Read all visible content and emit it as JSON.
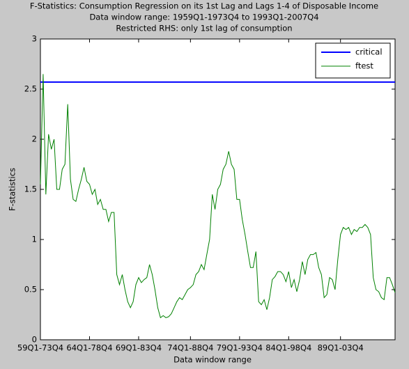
{
  "chart_data": {
    "type": "line",
    "title": "F-Statistics: Consumption Regression on its 1st Lag and Lags 1-4 of Disposable Income",
    "subtitle": "Data window range: 1959Q1-1973Q4 to 1993Q1-2007Q4",
    "annotation": "Restricted RHS: only 1st lag of consumption",
    "x_label": "Data window range",
    "y_label": "F-statistics",
    "xlim": [
      0,
      130
    ],
    "ylim": [
      0,
      3
    ],
    "xticks": [
      {
        "value": 0,
        "label": "59Q1-73Q4"
      },
      {
        "value": 18,
        "label": "64Q1-78Q4"
      },
      {
        "value": 36,
        "label": "69Q1-83Q4"
      },
      {
        "value": 55,
        "label": "74Q1-88Q4"
      },
      {
        "value": 73,
        "label": "79Q1-93Q4"
      },
      {
        "value": 91,
        "label": "84Q1-98Q4"
      },
      {
        "value": 110,
        "label": "89Q1-03Q4"
      }
    ],
    "yticks": [
      0,
      0.5,
      1,
      1.5,
      2,
      2.5,
      3
    ],
    "legend": "top-right",
    "series": [
      {
        "name": "critical",
        "color": "#0000ff",
        "x": [
          0,
          130
        ],
        "values": [
          2.57,
          2.57
        ]
      },
      {
        "name": "ftest",
        "color": "#008000",
        "values": [
          1.55,
          2.65,
          1.45,
          2.05,
          1.9,
          2.0,
          1.5,
          1.5,
          1.7,
          1.75,
          2.35,
          1.6,
          1.4,
          1.38,
          1.5,
          1.6,
          1.72,
          1.58,
          1.55,
          1.45,
          1.5,
          1.35,
          1.4,
          1.3,
          1.3,
          1.18,
          1.27,
          1.27,
          0.65,
          0.55,
          0.65,
          0.5,
          0.38,
          0.32,
          0.38,
          0.55,
          0.62,
          0.57,
          0.6,
          0.62,
          0.75,
          0.65,
          0.5,
          0.32,
          0.22,
          0.24,
          0.22,
          0.23,
          0.26,
          0.32,
          0.38,
          0.42,
          0.4,
          0.45,
          0.5,
          0.52,
          0.55,
          0.65,
          0.68,
          0.75,
          0.7,
          0.85,
          1.0,
          1.45,
          1.3,
          1.5,
          1.55,
          1.7,
          1.75,
          1.88,
          1.75,
          1.7,
          1.4,
          1.4,
          1.2,
          1.05,
          0.88,
          0.72,
          0.72,
          0.88,
          0.38,
          0.35,
          0.4,
          0.3,
          0.42,
          0.6,
          0.63,
          0.68,
          0.68,
          0.65,
          0.58,
          0.68,
          0.52,
          0.6,
          0.48,
          0.6,
          0.78,
          0.65,
          0.8,
          0.85,
          0.85,
          0.87,
          0.72,
          0.65,
          0.42,
          0.45,
          0.62,
          0.6,
          0.5,
          0.8,
          1.05,
          1.12,
          1.1,
          1.12,
          1.05,
          1.1,
          1.08,
          1.12,
          1.12,
          1.15,
          1.12,
          1.05,
          0.62,
          0.5,
          0.48,
          0.42,
          0.4,
          0.62,
          0.62,
          0.55,
          0.47
        ]
      }
    ]
  }
}
